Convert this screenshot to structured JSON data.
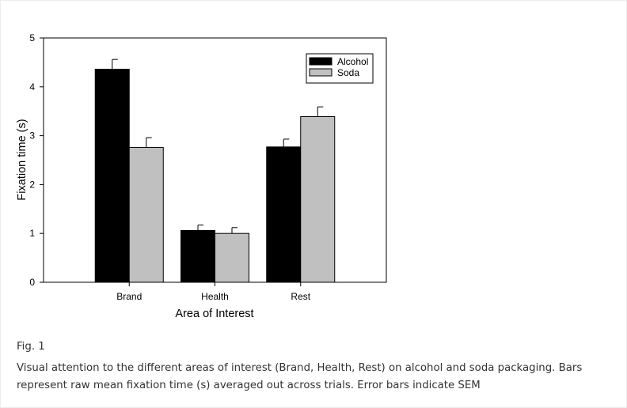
{
  "chart_data": {
    "type": "bar",
    "title": "",
    "xlabel": "Area of Interest",
    "ylabel": "Fixation time (s)",
    "ylim": [
      0,
      5
    ],
    "yticks": [
      "0",
      "1",
      "2",
      "3",
      "4",
      "5"
    ],
    "categories": [
      "Brand",
      "Health",
      "Rest"
    ],
    "series": [
      {
        "name": "Alcohol",
        "color": "#000000",
        "values": [
          4.36,
          1.06,
          2.77
        ],
        "sem": [
          0.2,
          0.11,
          0.16
        ]
      },
      {
        "name": "Soda",
        "color": "#c0c0c0",
        "values": [
          2.76,
          1.0,
          3.39
        ],
        "sem": [
          0.2,
          0.12,
          0.2
        ]
      }
    ],
    "legend_position": "top-right",
    "grid": false
  },
  "caption": {
    "label": "Fig. 1",
    "text": "Visual attention to the different areas of interest (Brand, Health, Rest) on alcohol and soda packaging. Bars represent raw mean fixation time (s) averaged out across trials. Error bars indicate SEM"
  }
}
